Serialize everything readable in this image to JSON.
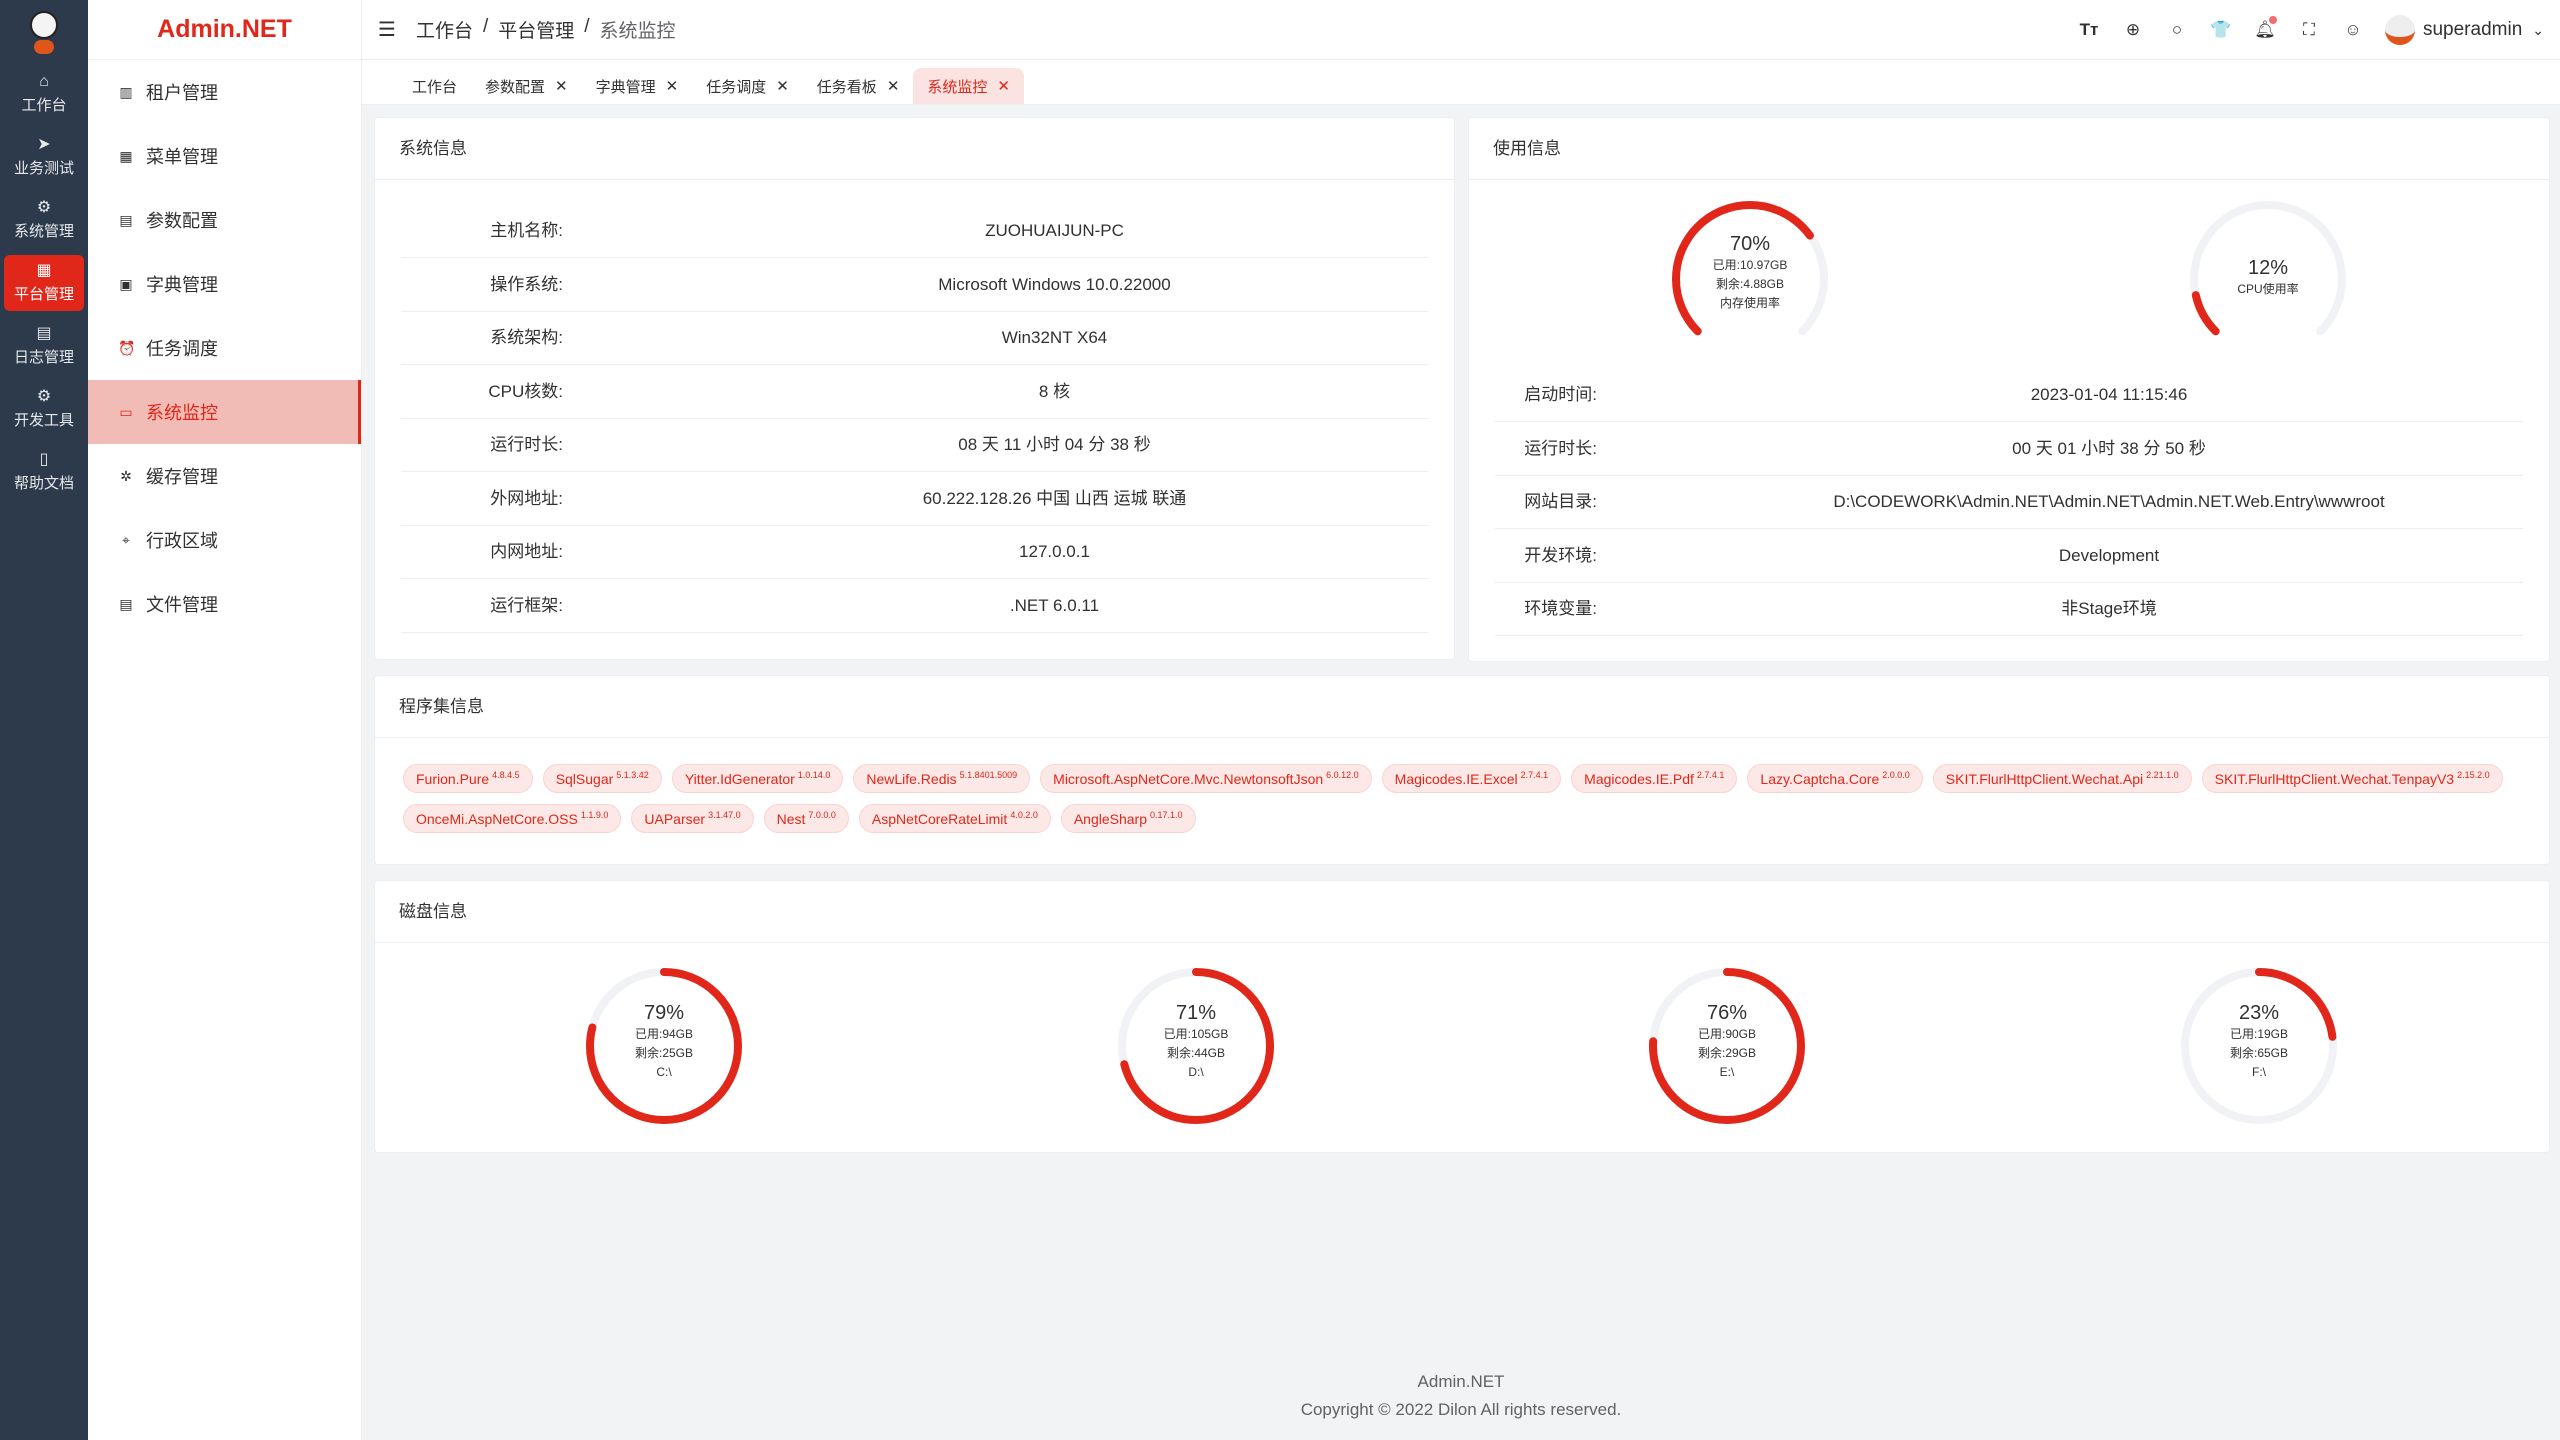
{
  "rail": {
    "items": [
      {
        "label": "工作台",
        "icon": "home-icon",
        "glyph": "⌂"
      },
      {
        "label": "业务测试",
        "icon": "send-icon",
        "glyph": "➤"
      },
      {
        "label": "系统管理",
        "icon": "gear-icon",
        "glyph": "⚙"
      },
      {
        "label": "平台管理",
        "icon": "grid-icon",
        "glyph": "▦"
      },
      {
        "label": "日志管理",
        "icon": "document-icon",
        "glyph": "▤"
      },
      {
        "label": "开发工具",
        "icon": "chip-icon",
        "glyph": "⚙"
      },
      {
        "label": "帮助文档",
        "icon": "book-icon",
        "glyph": "▯"
      }
    ],
    "active": 3
  },
  "brand": "Admin.NET",
  "sidebar": {
    "items": [
      {
        "label": "租户管理",
        "glyph": "▥"
      },
      {
        "label": "菜单管理",
        "glyph": "▦"
      },
      {
        "label": "参数配置",
        "glyph": "▤"
      },
      {
        "label": "字典管理",
        "glyph": "▣"
      },
      {
        "label": "任务调度",
        "glyph": "⏰"
      },
      {
        "label": "系统监控",
        "glyph": "▭"
      },
      {
        "label": "缓存管理",
        "glyph": "✲"
      },
      {
        "label": "行政区域",
        "glyph": "⌖"
      },
      {
        "label": "文件管理",
        "glyph": "▤"
      }
    ],
    "active": 5
  },
  "header": {
    "breadcrumb": [
      "工作台",
      "平台管理",
      "系统监控"
    ],
    "sep": "/",
    "user": "superadmin",
    "icons": [
      "font-size-icon",
      "language-icon",
      "search-icon",
      "theme-icon",
      "bell-icon",
      "fullscreen-icon",
      "user-icon"
    ]
  },
  "tabs": [
    {
      "label": "工作台",
      "closable": false
    },
    {
      "label": "参数配置",
      "closable": true
    },
    {
      "label": "字典管理",
      "closable": true
    },
    {
      "label": "任务调度",
      "closable": true
    },
    {
      "label": "任务看板",
      "closable": true
    },
    {
      "label": "系统监控",
      "closable": true,
      "active": true
    }
  ],
  "sysinfo": {
    "title": "系统信息",
    "rows": [
      {
        "label": "主机名称:",
        "value": "ZUOHUAIJUN-PC"
      },
      {
        "label": "操作系统:",
        "value": "Microsoft Windows 10.0.22000"
      },
      {
        "label": "系统架构:",
        "value": "Win32NT X64"
      },
      {
        "label": "CPU核数:",
        "value": "8 核"
      },
      {
        "label": "运行时长:",
        "value": "08 天 11 小时 04 分 38 秒"
      },
      {
        "label": "外网地址:",
        "value": "60.222.128.26 中国 山西 运城 联通"
      },
      {
        "label": "内网地址:",
        "value": "127.0.0.1"
      },
      {
        "label": "运行框架:",
        "value": ".NET 6.0.11"
      }
    ]
  },
  "usage": {
    "title": "使用信息",
    "memory": {
      "percent": 70,
      "percent_label": "70%",
      "used": "已用:10.97GB",
      "free": "剩余:4.88GB",
      "label": "内存使用率"
    },
    "cpu": {
      "percent": 12,
      "percent_label": "12%",
      "label": "CPU使用率"
    },
    "rows": [
      {
        "label": "启动时间:",
        "value": "2023-01-04 11:15:46"
      },
      {
        "label": "运行时长:",
        "value": "00 天 01 小时 38 分 50 秒"
      },
      {
        "label": "网站目录:",
        "value": "D:\\CODEWORK\\Admin.NET\\Admin.NET\\Admin.NET.Web.Entry\\wwwroot"
      },
      {
        "label": "开发环境:",
        "value": "Development"
      },
      {
        "label": "环境变量:",
        "value": "非Stage环境"
      }
    ]
  },
  "assemblies": {
    "title": "程序集信息",
    "items": [
      {
        "name": "Furion.Pure",
        "version": "4.8.4.5"
      },
      {
        "name": "SqlSugar",
        "version": "5.1.3.42"
      },
      {
        "name": "Yitter.IdGenerator",
        "version": "1.0.14.0"
      },
      {
        "name": "NewLife.Redis",
        "version": "5.1.8401.5009"
      },
      {
        "name": "Microsoft.AspNetCore.Mvc.NewtonsoftJson",
        "version": "6.0.12.0"
      },
      {
        "name": "Magicodes.IE.Excel",
        "version": "2.7.4.1"
      },
      {
        "name": "Magicodes.IE.Pdf",
        "version": "2.7.4.1"
      },
      {
        "name": "Lazy.Captcha.Core",
        "version": "2.0.0.0"
      },
      {
        "name": "SKIT.FlurlHttpClient.Wechat.Api",
        "version": "2.21.1.0"
      },
      {
        "name": "SKIT.FlurlHttpClient.Wechat.TenpayV3",
        "version": "2.15.2.0"
      },
      {
        "name": "OnceMi.AspNetCore.OSS",
        "version": "1.1.9.0"
      },
      {
        "name": "UAParser",
        "version": "3.1.47.0"
      },
      {
        "name": "Nest",
        "version": "7.0.0.0"
      },
      {
        "name": "AspNetCoreRateLimit",
        "version": "4.0.2.0"
      },
      {
        "name": "AngleSharp",
        "version": "0.17.1.0"
      }
    ]
  },
  "disks": {
    "title": "磁盘信息",
    "items": [
      {
        "percent": 79,
        "percent_label": "79%",
        "used": "已用:94GB",
        "free": "剩余:25GB",
        "name": "C:\\"
      },
      {
        "percent": 71,
        "percent_label": "71%",
        "used": "已用:105GB",
        "free": "剩余:44GB",
        "name": "D:\\"
      },
      {
        "percent": 76,
        "percent_label": "76%",
        "used": "已用:90GB",
        "free": "剩余:29GB",
        "name": "E:\\"
      },
      {
        "percent": 23,
        "percent_label": "23%",
        "used": "已用:19GB",
        "free": "剩余:65GB",
        "name": "F:\\"
      }
    ]
  },
  "colors": {
    "accent": "#e0271a",
    "track": "#f0f2f5",
    "rail": "#2d3a4b"
  },
  "footer": {
    "line1": "Admin.NET",
    "line2": "Copyright © 2022 Dilon All rights reserved."
  }
}
